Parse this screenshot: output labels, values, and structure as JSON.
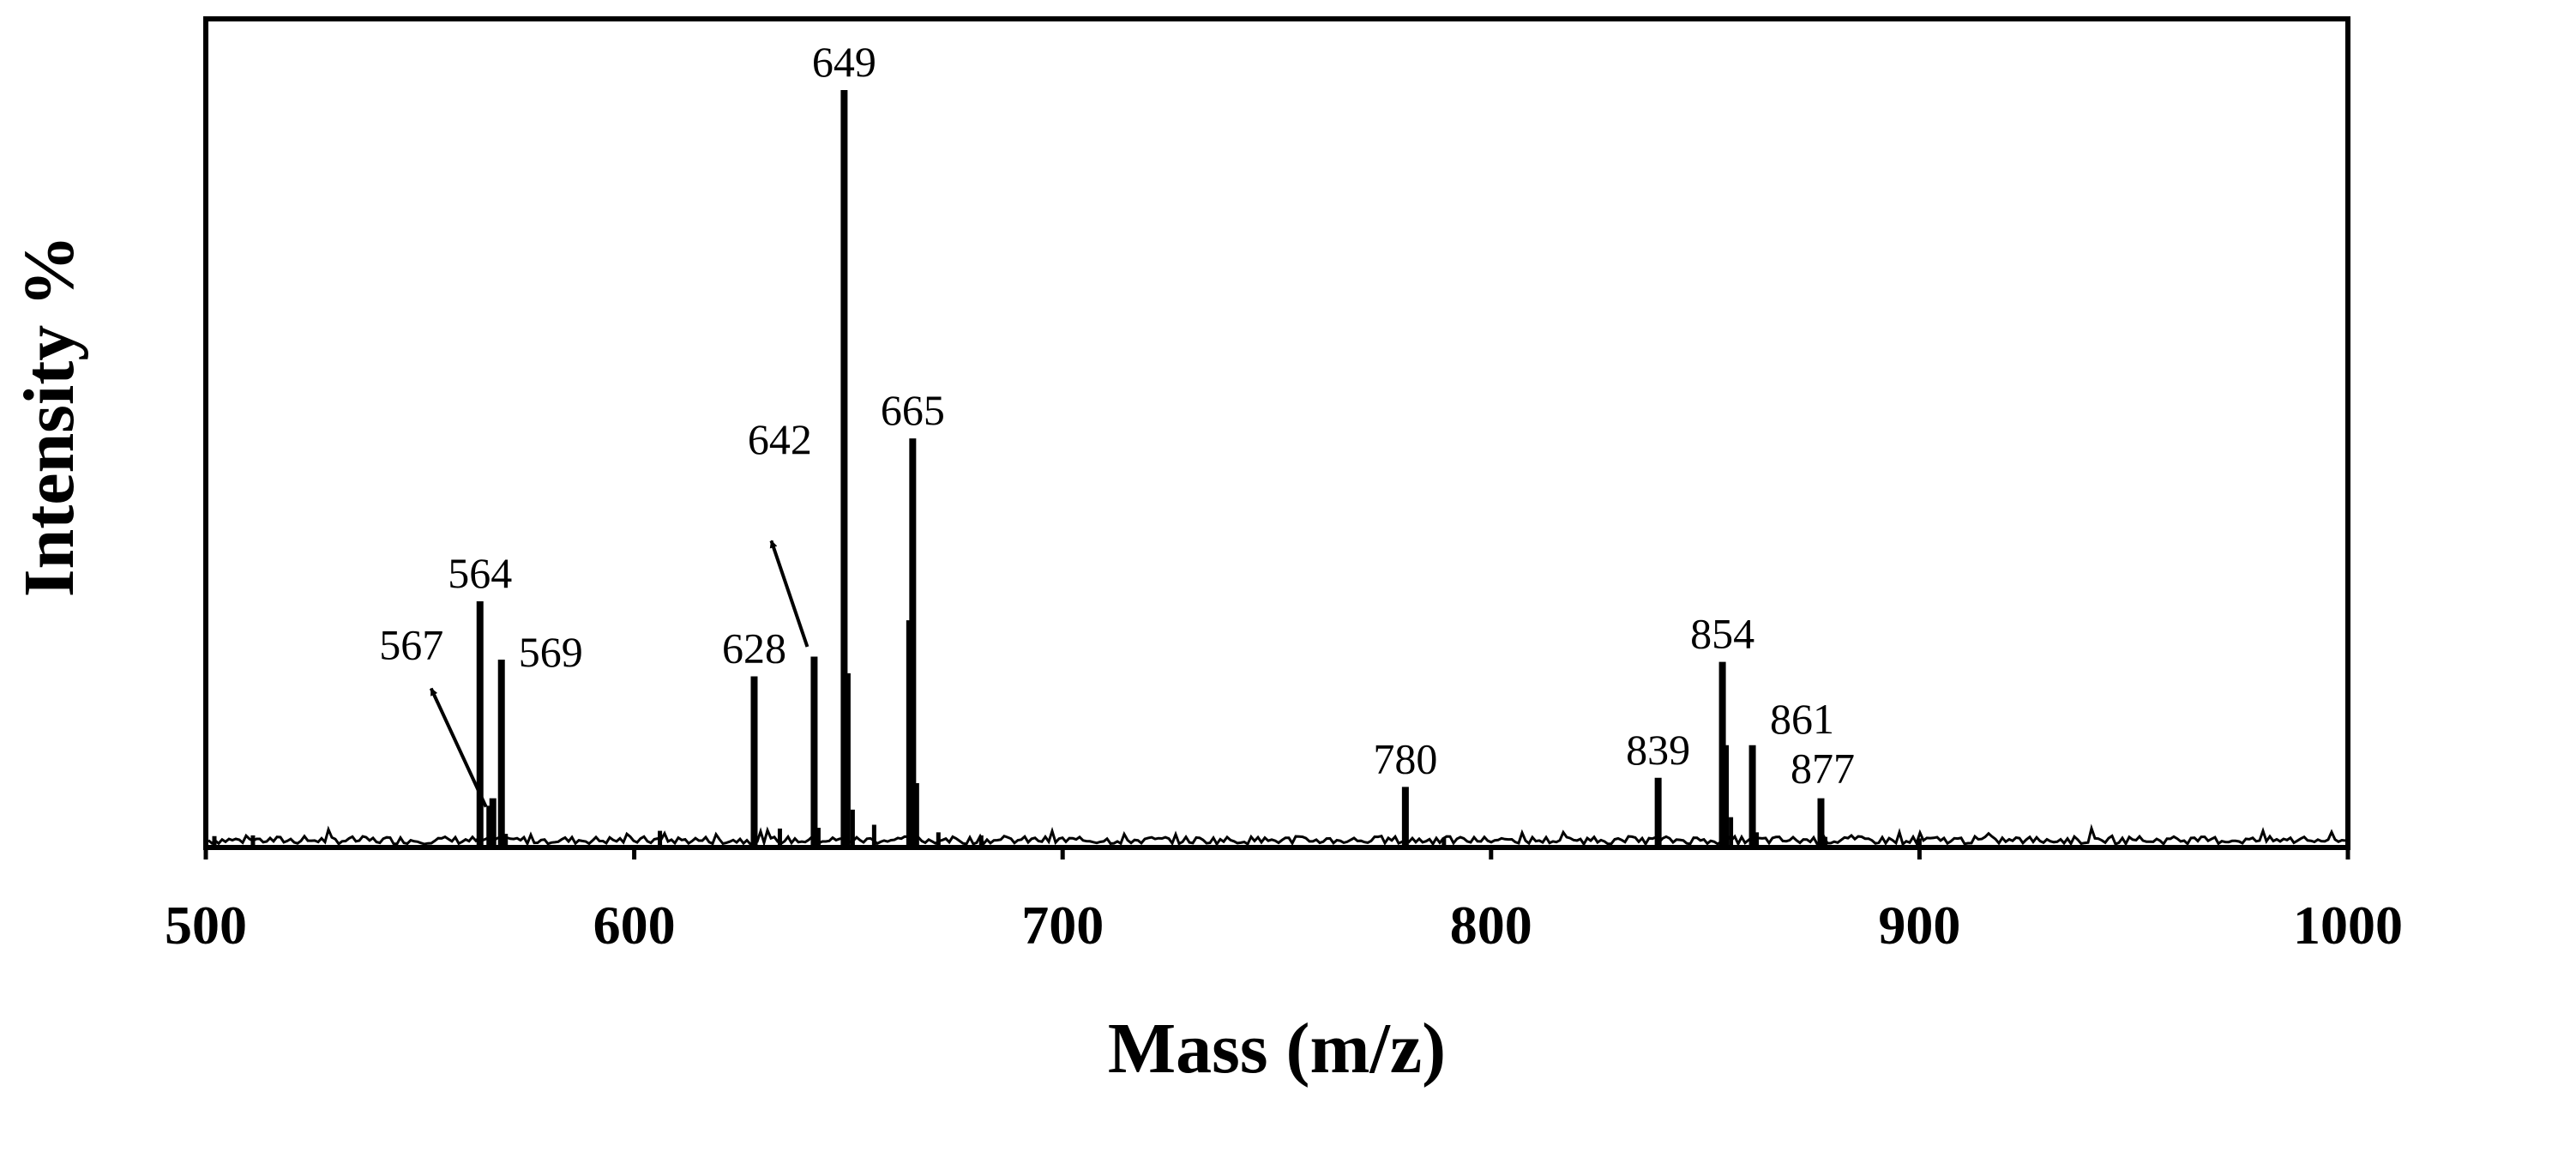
{
  "chart_data": {
    "type": "bar",
    "title": "",
    "xlabel": "Mass (m/z)",
    "ylabel": "Intensity %",
    "xlim": [
      500,
      1000
    ],
    "ylim": [
      0,
      100
    ],
    "xticks": [
      500,
      600,
      700,
      800,
      900,
      1000
    ],
    "grid": false,
    "legend": "none",
    "series": [
      {
        "name": "spectrum",
        "peaks": [
          {
            "mz": 564,
            "intensity": 32.5,
            "label": "564"
          },
          {
            "mz": 567,
            "intensity": 6.5,
            "label": "567"
          },
          {
            "mz": 569,
            "intensity": 24.8,
            "label": "569"
          },
          {
            "mz": 628,
            "intensity": 22.6,
            "label": "628"
          },
          {
            "mz": 642,
            "intensity": 25.2,
            "label": "642"
          },
          {
            "mz": 649,
            "intensity": 100,
            "label": "649"
          },
          {
            "mz": 665,
            "intensity": 54.0,
            "label": "665"
          },
          {
            "mz": 780,
            "intensity": 8.0,
            "label": "780"
          },
          {
            "mz": 839,
            "intensity": 9.2,
            "label": "839"
          },
          {
            "mz": 854,
            "intensity": 24.5,
            "label": "854"
          },
          {
            "mz": 861,
            "intensity": 13.5,
            "label": "861"
          },
          {
            "mz": 877,
            "intensity": 6.5,
            "label": "877"
          }
        ],
        "minor_peaks": [
          {
            "mz": 502,
            "intensity": 1.5
          },
          {
            "mz": 511,
            "intensity": 1.6
          },
          {
            "mz": 566,
            "intensity": 5.5
          },
          {
            "mz": 570,
            "intensity": 1.8
          },
          {
            "mz": 606,
            "intensity": 2.2
          },
          {
            "mz": 634,
            "intensity": 2.5
          },
          {
            "mz": 643,
            "intensity": 2.6
          },
          {
            "mz": 650,
            "intensity": 23.0
          },
          {
            "mz": 651,
            "intensity": 5.0
          },
          {
            "mz": 656,
            "intensity": 3.0
          },
          {
            "mz": 664,
            "intensity": 30.0
          },
          {
            "mz": 666,
            "intensity": 8.5
          },
          {
            "mz": 671,
            "intensity": 2.0
          },
          {
            "mz": 681,
            "intensity": 1.6
          },
          {
            "mz": 789,
            "intensity": 1.3
          },
          {
            "mz": 855,
            "intensity": 13.5
          },
          {
            "mz": 856,
            "intensity": 4.0
          },
          {
            "mz": 862,
            "intensity": 2.0
          },
          {
            "mz": 878,
            "intensity": 1.4
          },
          {
            "mz": 900,
            "intensity": 1.2
          }
        ]
      }
    ],
    "annotations": [
      {
        "text": "567",
        "type": "arrow",
        "points_to_mz": 567
      },
      {
        "text": "642",
        "type": "arrow",
        "points_to_mz": 642
      }
    ]
  }
}
